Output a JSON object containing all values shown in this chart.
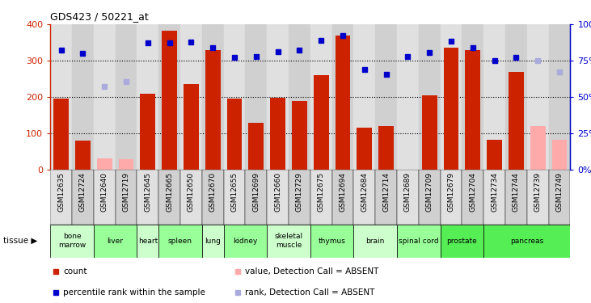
{
  "title": "GDS423 / 50221_at",
  "samples": [
    "GSM12635",
    "GSM12724",
    "GSM12640",
    "GSM12719",
    "GSM12645",
    "GSM12665",
    "GSM12650",
    "GSM12670",
    "GSM12655",
    "GSM12699",
    "GSM12660",
    "GSM12729",
    "GSM12675",
    "GSM12694",
    "GSM12684",
    "GSM12714",
    "GSM12689",
    "GSM12709",
    "GSM12679",
    "GSM12704",
    "GSM12734",
    "GSM12744",
    "GSM12739",
    "GSM12749"
  ],
  "tissues": [
    {
      "name": "bone\nmarrow",
      "start": 0,
      "end": 2,
      "color": "#ccffcc"
    },
    {
      "name": "liver",
      "start": 2,
      "end": 4,
      "color": "#99ff99"
    },
    {
      "name": "heart",
      "start": 4,
      "end": 5,
      "color": "#ccffcc"
    },
    {
      "name": "spleen",
      "start": 5,
      "end": 7,
      "color": "#99ff99"
    },
    {
      "name": "lung",
      "start": 7,
      "end": 8,
      "color": "#ccffcc"
    },
    {
      "name": "kidney",
      "start": 8,
      "end": 10,
      "color": "#99ff99"
    },
    {
      "name": "skeletal\nmuscle",
      "start": 10,
      "end": 12,
      "color": "#ccffcc"
    },
    {
      "name": "thymus",
      "start": 12,
      "end": 14,
      "color": "#99ff99"
    },
    {
      "name": "brain",
      "start": 14,
      "end": 16,
      "color": "#ccffcc"
    },
    {
      "name": "spinal cord",
      "start": 16,
      "end": 18,
      "color": "#99ff99"
    },
    {
      "name": "prostate",
      "start": 18,
      "end": 20,
      "color": "#55ee55"
    },
    {
      "name": "pancreas",
      "start": 20,
      "end": 24,
      "color": "#55ee55"
    }
  ],
  "count_values": [
    195,
    80,
    null,
    null,
    210,
    382,
    235,
    330,
    195,
    130,
    197,
    190,
    260,
    370,
    115,
    120,
    null,
    205,
    335,
    330,
    82,
    270,
    null,
    null
  ],
  "count_absent": [
    null,
    null,
    32,
    28,
    null,
    null,
    null,
    null,
    null,
    null,
    null,
    null,
    null,
    null,
    null,
    null,
    null,
    null,
    null,
    null,
    null,
    null,
    120,
    82
  ],
  "rank_values": [
    330,
    320,
    null,
    null,
    348,
    350,
    352,
    335,
    310,
    312,
    325,
    330,
    355,
    370,
    275,
    262,
    312,
    323,
    353,
    335,
    300,
    310,
    null,
    null
  ],
  "rank_absent": [
    null,
    null,
    228,
    242,
    null,
    null,
    null,
    null,
    null,
    null,
    null,
    null,
    null,
    null,
    null,
    null,
    null,
    null,
    null,
    null,
    null,
    null,
    300,
    268
  ],
  "bar_color": "#cc2200",
  "bar_absent_color": "#ffaaaa",
  "dot_color": "#0000cc",
  "dot_absent_color": "#aaaadd",
  "ylim_left": [
    0,
    400
  ],
  "ylim_right": [
    0,
    100
  ],
  "yticks_left": [
    0,
    100,
    200,
    300,
    400
  ],
  "yticks_right": [
    0,
    25,
    50,
    75,
    100
  ],
  "ytick_labels_right": [
    "0%",
    "25%",
    "50%",
    "75%",
    "100%"
  ],
  "col_bg_even": "#e0e0e0",
  "col_bg_odd": "#d0d0d0",
  "legend_items": [
    {
      "color": "#cc2200",
      "label": "count"
    },
    {
      "color": "#0000cc",
      "label": "percentile rank within the sample"
    },
    {
      "color": "#ffaaaa",
      "label": "value, Detection Call = ABSENT"
    },
    {
      "color": "#aaaadd",
      "label": "rank, Detection Call = ABSENT"
    }
  ]
}
